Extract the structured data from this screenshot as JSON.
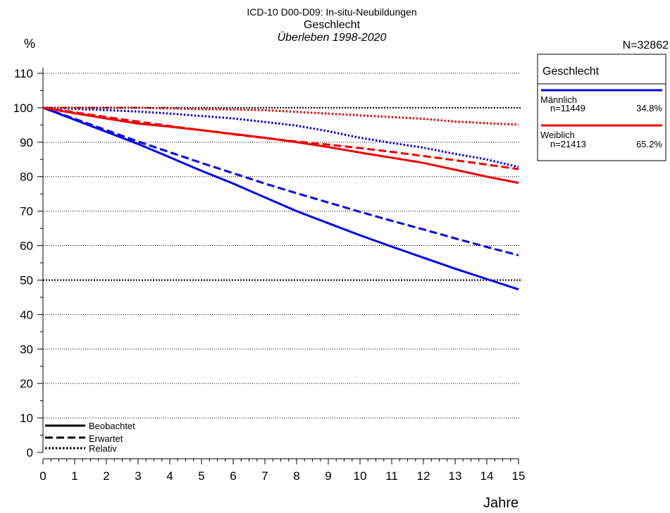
{
  "chart_data": {
    "type": "line",
    "title": "ICD-10 D00-D09: In-situ-Neubildungen",
    "subtitle": "Geschlecht",
    "subtitle2": "Überleben 1998-2020",
    "total": "N=32862",
    "ylabel": "%",
    "xlabel": "Jahre",
    "xlim": [
      0,
      15
    ],
    "ylim": [
      0,
      110
    ],
    "x_ticks": [
      "0",
      "1",
      "2",
      "3",
      "4",
      "5",
      "6",
      "7",
      "8",
      "9",
      "10",
      "11",
      "12",
      "13",
      "14",
      "15"
    ],
    "y_ticks": [
      "0",
      "10",
      "20",
      "30",
      "40",
      "50",
      "60",
      "70",
      "80",
      "90",
      "100",
      "110"
    ],
    "grid": "horizontal-dotted",
    "x": [
      0,
      1,
      2,
      3,
      4,
      5,
      6,
      7,
      8,
      9,
      10,
      11,
      12,
      13,
      14,
      15
    ],
    "series": [
      {
        "group": "Männlich",
        "style": "Beobachtet",
        "color": "#0000ee",
        "values": [
          100,
          96.5,
          93,
          89.5,
          85.6,
          81.7,
          78,
          74,
          70,
          66.5,
          63,
          59.7,
          56.5,
          53.3,
          50.3,
          47.3
        ]
      },
      {
        "group": "Männlich",
        "style": "Erwartet",
        "color": "#0000ee",
        "values": [
          100,
          96.8,
          93.5,
          90.2,
          87.1,
          84,
          81,
          78,
          75.2,
          72.5,
          69.8,
          67.2,
          64.7,
          62.1,
          59.6,
          57.2
        ]
      },
      {
        "group": "Männlich",
        "style": "Relativ",
        "color": "#0000ee",
        "values": [
          100,
          99.7,
          99.3,
          98.9,
          98.3,
          97.6,
          96.9,
          95.9,
          94.8,
          93.2,
          91.3,
          89.8,
          88.4,
          86.6,
          85,
          82.8
        ]
      },
      {
        "group": "Weiblich",
        "style": "Beobachtet",
        "color": "#ee0000",
        "values": [
          100,
          98.4,
          96.9,
          95.4,
          94.5,
          93.5,
          92.4,
          91.3,
          90,
          88.6,
          87,
          85.5,
          84,
          82,
          80,
          78.2
        ]
      },
      {
        "group": "Weiblich",
        "style": "Erwartet",
        "color": "#ee0000",
        "values": [
          100,
          98.7,
          97.3,
          96,
          94.7,
          93.5,
          92.3,
          91.2,
          90.2,
          89.3,
          88.3,
          87.2,
          86,
          84.8,
          83.5,
          82.2
        ]
      },
      {
        "group": "Weiblich",
        "style": "Relativ",
        "color": "#ee0000",
        "values": [
          100,
          100,
          100,
          100,
          99.8,
          99.6,
          99.5,
          99.3,
          98.8,
          98.3,
          97.8,
          97.3,
          96.8,
          96,
          95.5,
          95.1
        ]
      }
    ],
    "legend": {
      "title": "Geschlecht",
      "placement": "top-right",
      "groups": [
        {
          "name": "Männlich",
          "n": "n=11449",
          "pct": "34.8%",
          "color": "#0000ee"
        },
        {
          "name": "Weiblich",
          "n": "n=21413",
          "pct": "65.2%",
          "color": "#ee0000"
        }
      ]
    },
    "line_styles": [
      "Beobachtet",
      "Erwartet",
      "Relativ"
    ]
  }
}
